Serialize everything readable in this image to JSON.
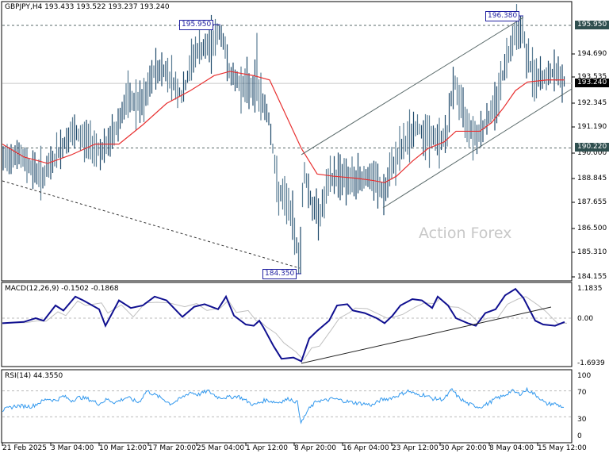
{
  "header": {
    "title": "GBPJPY,H4  193.433 193.522 193.237 193.240",
    "symbol": "GBPJPY",
    "timeframe": "H4",
    "open": "193.433",
    "high": "193.522",
    "low": "193.237",
    "close": "193.240"
  },
  "watermark": "Action Forex",
  "price_axis": {
    "ticks": [
      "194.690",
      "193.535",
      "192.345",
      "191.190",
      "190.000",
      "188.845",
      "187.655",
      "186.500",
      "185.310",
      "184.155"
    ],
    "tags": {
      "resistance": "195.950",
      "current": "193.240",
      "support": "190.220"
    }
  },
  "annotations": {
    "high_1": "195.950",
    "high_2": "196.380",
    "low_1": "184.350"
  },
  "macd": {
    "title": "MACD(12,26,9) -0.1502 -0.1868",
    "axis": [
      "1.1835",
      "0.00",
      "-1.6939"
    ]
  },
  "rsi": {
    "title": "RSI(14) 44.3550",
    "axis": [
      "100",
      "70",
      "30",
      "0"
    ]
  },
  "x_axis": {
    "labels": [
      "21 Feb 2025",
      "3 Mar 04:00",
      "10 Mar 12:00",
      "17 Mar 20:00",
      "25 Mar 04:00",
      "1 Apr 12:00",
      "8 Apr 20:00",
      "16 Apr 04:00",
      "23 Apr 12:00",
      "30 Apr 20:00",
      "8 May 04:00",
      "15 May 12:00"
    ]
  },
  "colors": {
    "bar": "#5a7d94",
    "bar_dark": "#1f4a6b",
    "ma": "#e83030",
    "macd_main": "#101090",
    "macd_signal": "#c0c0c0",
    "rsi": "#3399ee",
    "grid_dash": "#999999"
  },
  "chart_data": [
    {
      "type": "line",
      "title": "GBPJPY,H4",
      "description": "OHLC bar chart with moving average, ascending channel and trendlines",
      "x": [
        "21 Feb 2025",
        "3 Mar 04:00",
        "10 Mar 12:00",
        "17 Mar 20:00",
        "25 Mar 04:00",
        "1 Apr 12:00",
        "8 Apr 20:00",
        "16 Apr 04:00",
        "23 Apr 12:00",
        "30 Apr 20:00",
        "8 May 04:00",
        "15 May 12:00"
      ],
      "series": [
        {
          "name": "Close (approx)",
          "values": [
            189.7,
            190.5,
            191.8,
            193.5,
            195.3,
            193.0,
            188.0,
            189.0,
            190.8,
            191.5,
            195.0,
            193.3
          ]
        },
        {
          "name": "MA (red)",
          "values": [
            190.3,
            189.7,
            190.3,
            192.0,
            193.4,
            193.2,
            189.5,
            189.0,
            189.5,
            190.7,
            192.8,
            193.3
          ]
        }
      ],
      "levels": {
        "195.950": "resistance",
        "190.220": "support",
        "193.240": "current"
      },
      "annotations": [
        "195.950 high",
        "196.380 high",
        "184.350 low"
      ],
      "ylim": [
        184.155,
        196.5
      ]
    },
    {
      "type": "line",
      "title": "MACD(12,26,9)",
      "series": [
        {
          "name": "MACD",
          "values": [
            -0.2,
            0.7,
            0.0,
            0.9,
            0.1,
            -1.69,
            0.6,
            0.1,
            0.7,
            0.0,
            1.0,
            -0.15
          ]
        },
        {
          "name": "Signal",
          "values": [
            -0.2,
            0.6,
            0.2,
            0.7,
            0.3,
            -1.4,
            0.4,
            0.2,
            0.6,
            0.1,
            0.9,
            -0.19
          ]
        }
      ],
      "ylim": [
        -1.6939,
        1.1835
      ]
    },
    {
      "type": "line",
      "title": "RSI(14)",
      "series": [
        {
          "name": "RSI",
          "values": [
            45,
            55,
            52,
            60,
            58,
            50,
            30,
            55,
            62,
            48,
            72,
            44.355
          ]
        }
      ],
      "levels": [
        70,
        30
      ],
      "ylim": [
        0,
        100
      ]
    }
  ]
}
